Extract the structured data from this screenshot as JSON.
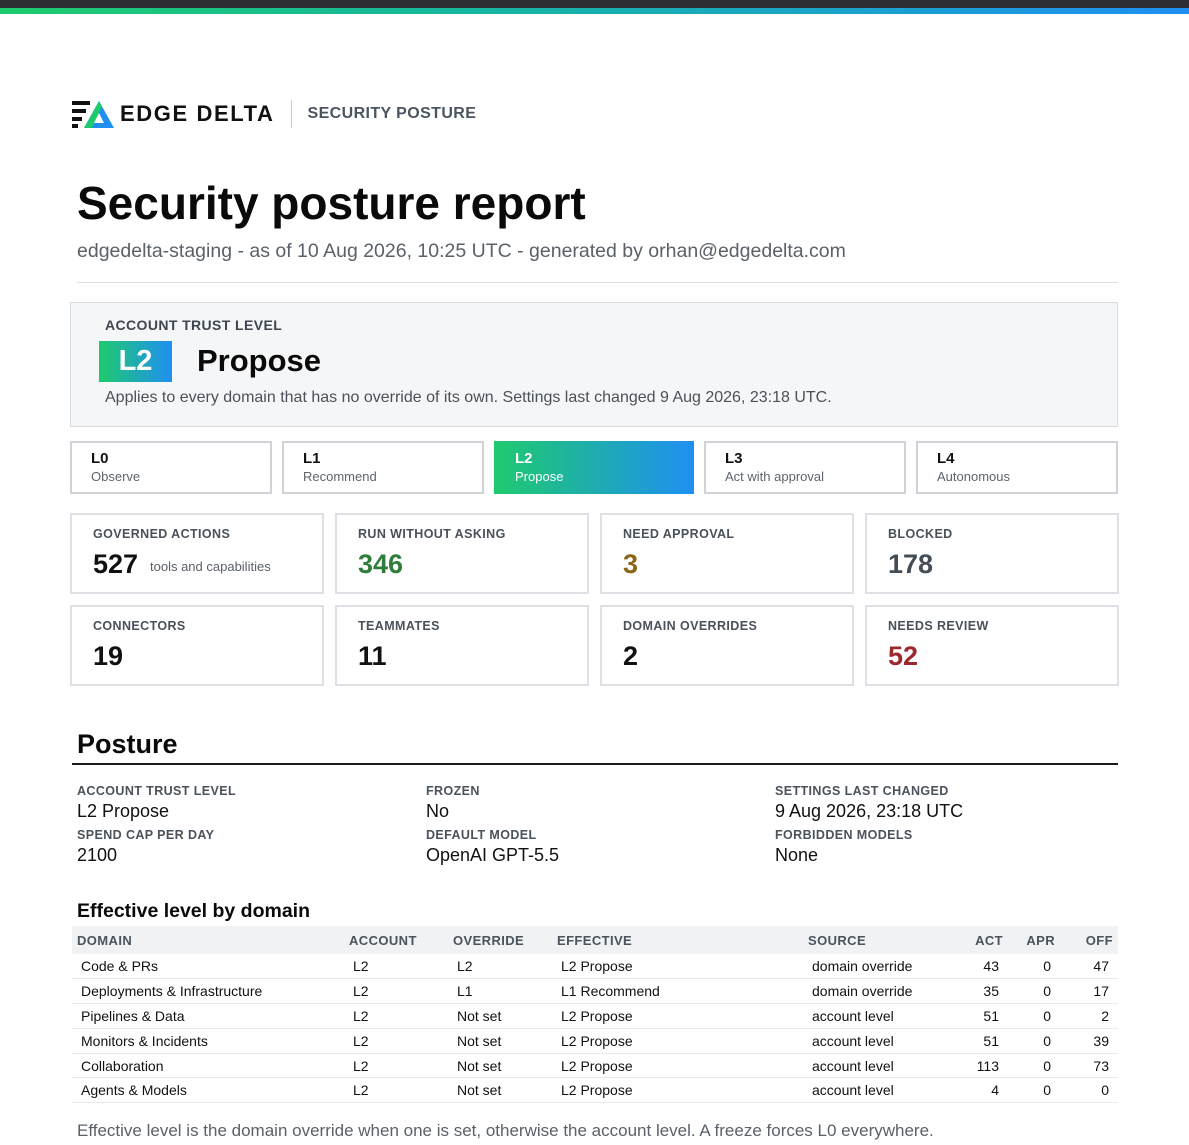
{
  "brand": {
    "name": "EDGE DELTA",
    "section": "SECURITY POSTURE",
    "colors": {
      "accent_green": "#1fca6e",
      "accent_blue": "#1f8ff2"
    }
  },
  "header": {
    "title": "Security posture report",
    "subtitle": "edgedelta-staging - as of 10 Aug 2026, 10:25 UTC - generated by orhan@edgedelta.com"
  },
  "trust": {
    "label": "ACCOUNT TRUST LEVEL",
    "badge": "L2",
    "name": "Propose",
    "description": "Applies to every domain that has no override of its own. Settings last changed 9 Aug 2026, 23:18 UTC."
  },
  "levels": [
    {
      "code": "L0",
      "name": "Observe",
      "active": false
    },
    {
      "code": "L1",
      "name": "Recommend",
      "active": false
    },
    {
      "code": "L2",
      "name": "Propose",
      "active": true
    },
    {
      "code": "L3",
      "name": "Act with approval",
      "active": false
    },
    {
      "code": "L4",
      "name": "Autonomous",
      "active": false
    }
  ],
  "stats": [
    {
      "label": "GOVERNED ACTIONS",
      "value": "527",
      "note": "tools and capabilities",
      "color": "#111111"
    },
    {
      "label": "RUN WITHOUT ASKING",
      "value": "346",
      "color": "#2e7d3a"
    },
    {
      "label": "NEED APPROVAL",
      "value": "3",
      "color": "#8a6514"
    },
    {
      "label": "BLOCKED",
      "value": "178",
      "color": "#454d57"
    },
    {
      "label": "CONNECTORS",
      "value": "19",
      "color": "#111111"
    },
    {
      "label": "TEAMMATES",
      "value": "11",
      "color": "#111111"
    },
    {
      "label": "DOMAIN OVERRIDES",
      "value": "2",
      "color": "#111111"
    },
    {
      "label": "NEEDS REVIEW",
      "value": "52",
      "color": "#9b2a2f"
    }
  ],
  "posture": {
    "title": "Posture",
    "facts": [
      {
        "label": "ACCOUNT TRUST LEVEL",
        "value": "L2 Propose"
      },
      {
        "label": "FROZEN",
        "value": "No"
      },
      {
        "label": "SETTINGS LAST CHANGED",
        "value": "9 Aug 2026, 23:18 UTC"
      },
      {
        "label": "SPEND CAP PER DAY",
        "value": "2100"
      },
      {
        "label": "DEFAULT MODEL",
        "value": "OpenAI GPT-5.5"
      },
      {
        "label": "FORBIDDEN MODELS",
        "value": "None"
      }
    ]
  },
  "domains_table": {
    "title": "Effective level by domain",
    "headers": [
      "DOMAIN",
      "ACCOUNT",
      "OVERRIDE",
      "EFFECTIVE",
      "SOURCE",
      "ACT",
      "APR",
      "OFF"
    ],
    "rows": [
      [
        "Code & PRs",
        "L2",
        "L2",
        "L2 Propose",
        "domain override",
        "43",
        "0",
        "47"
      ],
      [
        "Deployments & Infrastructure",
        "L2",
        "L1",
        "L1 Recommend",
        "domain override",
        "35",
        "0",
        "17"
      ],
      [
        "Pipelines & Data",
        "L2",
        "Not set",
        "L2 Propose",
        "account level",
        "51",
        "0",
        "2"
      ],
      [
        "Monitors & Incidents",
        "L2",
        "Not set",
        "L2 Propose",
        "account level",
        "51",
        "0",
        "39"
      ],
      [
        "Collaboration",
        "L2",
        "Not set",
        "L2 Propose",
        "account level",
        "113",
        "0",
        "73"
      ],
      [
        "Agents & Models",
        "L2",
        "Not set",
        "L2 Propose",
        "account level",
        "4",
        "0",
        "0"
      ]
    ],
    "footnote": "Effective level is the domain override when one is set, otherwise the account level. A freeze forces L0 everywhere."
  }
}
